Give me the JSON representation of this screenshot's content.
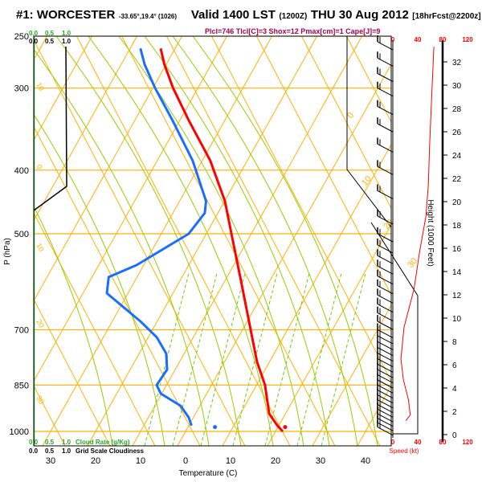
{
  "header": {
    "station": "#1: WORCESTER",
    "coords": "-33.65°,19.4° (1026)",
    "valid": "Valid 1400 LST",
    "utc": "(1200Z)",
    "date": "THU 30 Aug 2012",
    "forecast": "[18hrFcst@2200z]",
    "indices": "Plcl=746 Tlcl[C]=3 Shox=12 Pmax[cm]=1 Cape[J]=9"
  },
  "colors": {
    "temperature": "#ff0000",
    "dewpoint": "#1a6dff",
    "isotherm": "#ffb000",
    "moist_adiabat": "#99cc00",
    "mixing_ratio": "#66cc00",
    "cloud": "#22aa22",
    "index_text": "#aa0044"
  },
  "cloud_scale": {
    "top_rate_ticks": [
      "0.0",
      "0.5",
      "1.0"
    ],
    "top_grid_ticks": [
      "0.0",
      "0.5",
      "1.0"
    ],
    "bottom_rate_ticks": [
      "0.0",
      "0.5",
      "1.0"
    ],
    "bottom_rate_label": "Cloud Rate (g/Kg)",
    "bottom_grid_ticks": [
      "0.0",
      "0.5",
      "1.0"
    ],
    "bottom_grid_label": "Grid Scale Cloudiness"
  },
  "chart_data": {
    "type": "line",
    "title": "Skew-T log-P sounding",
    "xlabel": "Temperature (C)",
    "ylabel": "P (hPa)",
    "x_ticks": [
      "30",
      "20",
      "10",
      "0",
      "10",
      "20",
      "30",
      "40"
    ],
    "x_tick_values": [
      -30,
      -20,
      -10,
      0,
      10,
      20,
      30,
      40
    ],
    "y_ticks": [
      "250",
      "300",
      "400",
      "500",
      "700",
      "850",
      "1000"
    ],
    "y_tick_values": [
      250,
      300,
      400,
      500,
      700,
      850,
      1000
    ],
    "isotherm_labels_left": [
      "10",
      "0",
      "10",
      "20",
      "30"
    ],
    "isotherm_labels_right": [
      "0",
      "10",
      "20",
      "30"
    ],
    "series": [
      {
        "name": "Temperature",
        "pressure": [
          261,
          276,
          300,
          336,
          387,
          446,
          500,
          590,
          700,
          783,
          850,
          901,
          940,
          980,
          1000
        ],
        "temp": [
          -53.2,
          -50.4,
          -45.5,
          -38.0,
          -28.2,
          -19.9,
          -14.4,
          -6.4,
          1.8,
          7.2,
          11.9,
          14.5,
          16.4,
          19.7,
          21.6
        ]
      },
      {
        "name": "Dewpoint",
        "pressure": [
          261,
          276,
          300,
          336,
          387,
          446,
          465,
          500,
          558,
          582,
          616,
          680,
          719,
          761,
          805,
          850,
          876,
          914,
          953,
          980
        ],
        "temp": [
          -57.7,
          -54.8,
          -49.5,
          -41.6,
          -32.1,
          -24.1,
          -22.9,
          -23.9,
          -31.6,
          -36.3,
          -34.7,
          -23.7,
          -18.1,
          -14.0,
          -11.8,
          -12.2,
          -10.2,
          -4.3,
          -1.0,
          0.6
        ]
      }
    ],
    "surface_points": [
      {
        "name": "surface-dewpoint",
        "pressure": 985,
        "temp": 6.0
      },
      {
        "name": "surface-temperature",
        "pressure": 985,
        "temp": 21.6
      }
    ],
    "wind_profile": {
      "xlabel": "Speed (kt)",
      "ylabel": "Height (1000 Feet)",
      "speed_ticks": [
        "0",
        "40",
        "80",
        "120"
      ],
      "speed_tick_values": [
        0,
        40,
        80,
        120
      ],
      "height_ticks": [
        "0",
        "2",
        "4",
        "6",
        "8",
        "10",
        "12",
        "14",
        "16",
        "18",
        "20",
        "22",
        "24",
        "26",
        "28",
        "30",
        "32"
      ],
      "height_kft": [
        33.3,
        29.7,
        24.7,
        21.4,
        18.7,
        15.7,
        12.5,
        9.2,
        6.5,
        4.7,
        3.0,
        1.7,
        1.2
      ],
      "speed_kt": [
        66,
        63,
        59,
        57,
        53,
        43,
        34,
        18,
        13,
        17,
        25,
        28,
        21
      ]
    },
    "wind_barb_pressures": [
      255,
      270,
      285,
      300,
      320,
      340,
      365,
      395,
      430,
      470,
      500,
      520,
      540,
      560,
      580,
      600,
      620,
      640,
      660,
      680,
      700,
      715,
      730,
      745,
      760,
      775,
      790,
      805,
      820,
      835,
      850,
      865,
      880,
      895,
      910,
      925,
      940,
      955,
      970,
      985
    ]
  }
}
